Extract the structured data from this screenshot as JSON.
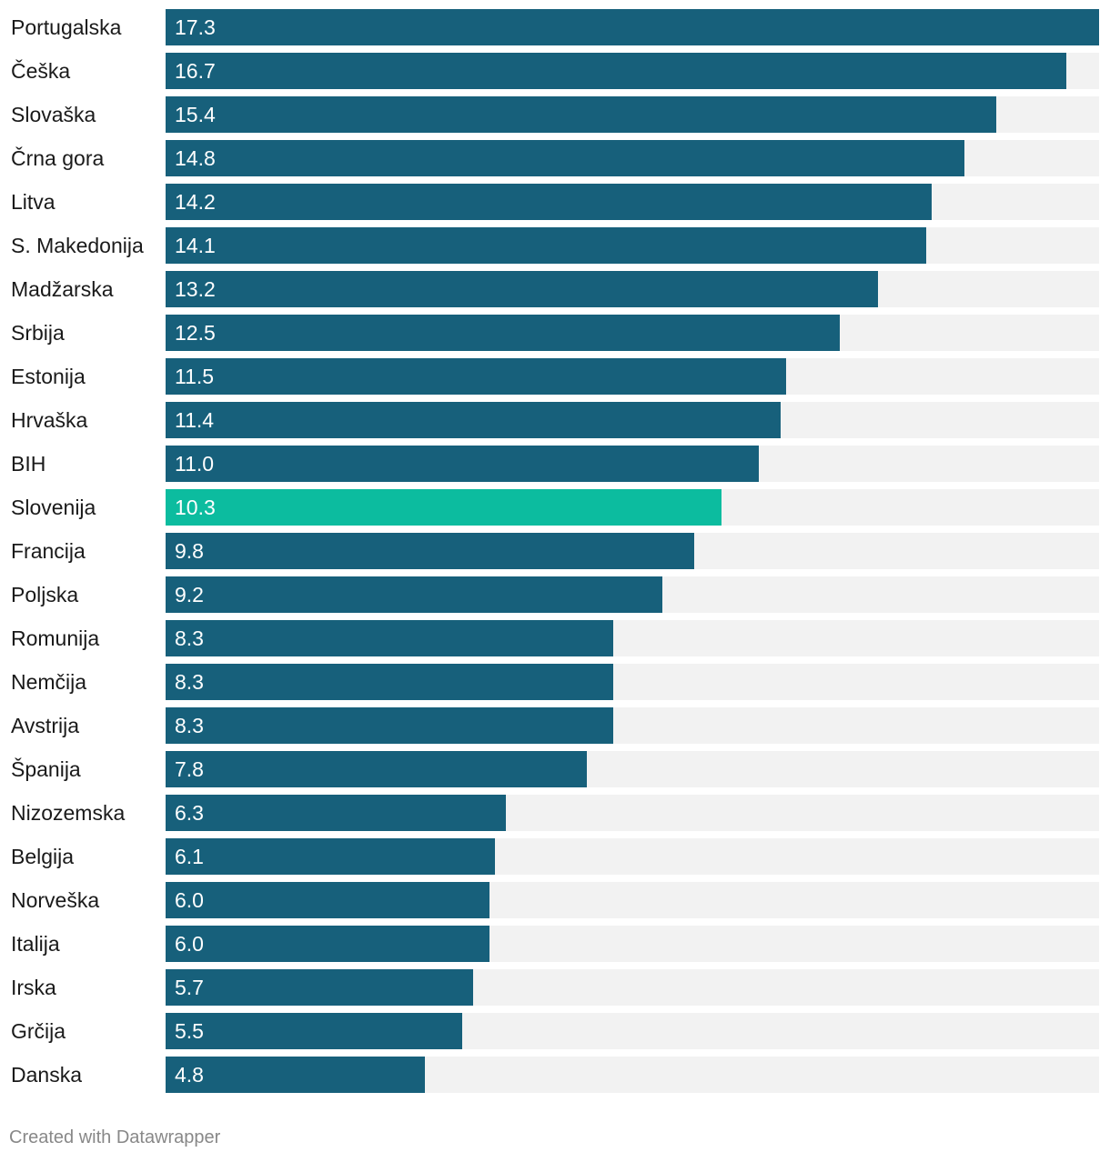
{
  "chart_data": {
    "type": "bar",
    "orientation": "horizontal",
    "title": "",
    "xlabel": "",
    "ylabel": "",
    "xlim": [
      0,
      17.3
    ],
    "categories": [
      "Portugalska",
      "Češka",
      "Slovaška",
      "Črna gora",
      "Litva",
      "S. Makedonija",
      "Madžarska",
      "Srbija",
      "Estonija",
      "Hrvaška",
      "BIH",
      "Slovenija",
      "Francija",
      "Poljska",
      "Romunija",
      "Nemčija",
      "Avstrija",
      "Španija",
      "Nizozemska",
      "Belgija",
      "Norveška",
      "Italija",
      "Irska",
      "Grčija",
      "Danska"
    ],
    "values": [
      17.3,
      16.7,
      15.4,
      14.8,
      14.2,
      14.1,
      13.2,
      12.5,
      11.5,
      11.4,
      11.0,
      10.3,
      9.8,
      9.2,
      8.3,
      8.3,
      8.3,
      7.8,
      6.3,
      6.1,
      6.0,
      6.0,
      5.7,
      5.5,
      4.8
    ],
    "value_labels": [
      "17.3",
      "16.7",
      "15.4",
      "14.8",
      "14.2",
      "14.1",
      "13.2",
      "12.5",
      "11.5",
      "11.4",
      "11.0",
      "10.3",
      "9.8",
      "9.2",
      "8.3",
      "8.3",
      "8.3",
      "7.8",
      "6.3",
      "6.1",
      "6.0",
      "6.0",
      "5.7",
      "5.5",
      "4.8"
    ],
    "highlight": "Slovenija",
    "colors": {
      "bar": "#17607b",
      "highlight": "#0cbc9f",
      "background_track": "#f2f2f2"
    }
  },
  "footer": {
    "credit": "Created with Datawrapper"
  }
}
